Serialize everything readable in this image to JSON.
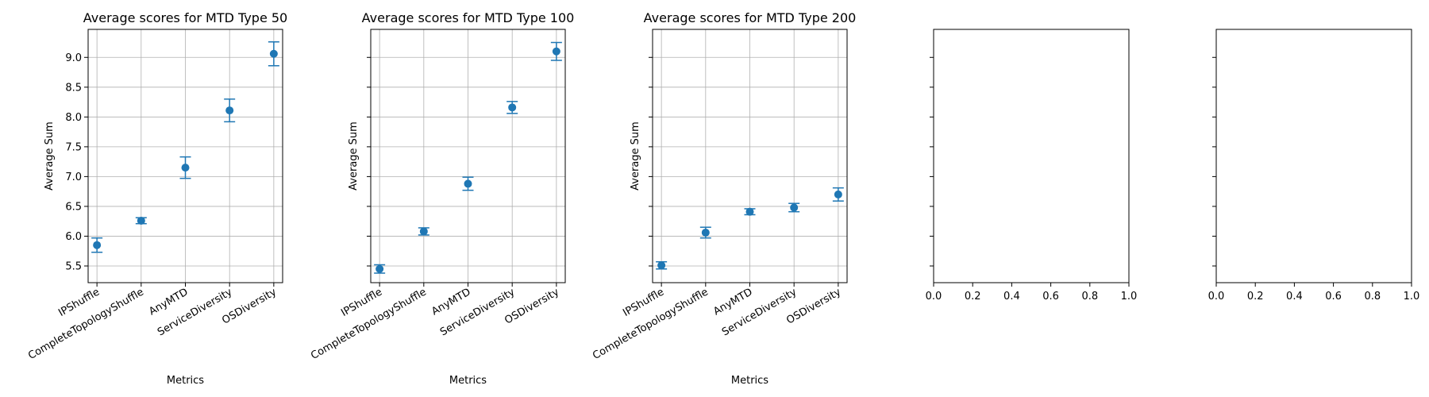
{
  "chart_data": [
    {
      "type": "scatter",
      "title": "Average scores for MTD Type 50",
      "xlabel": "Metrics",
      "ylabel": "Average Sum",
      "categories": [
        "IPShuffle",
        "CompleteTopologyShuffle",
        "AnyMTD",
        "ServiceDiversity",
        "OSDiversity"
      ],
      "values": [
        5.85,
        6.26,
        7.15,
        8.11,
        9.06
      ],
      "errors": [
        0.12,
        0.05,
        0.18,
        0.19,
        0.2
      ],
      "ylim": [
        5.22,
        9.47
      ],
      "yticks": [
        "5.5",
        "6.0",
        "6.5",
        "7.0",
        "7.5",
        "8.0",
        "8.5",
        "9.0"
      ],
      "show_yticklabels": true,
      "grid": true,
      "color": "#1f77b4"
    },
    {
      "type": "scatter",
      "title": "Average scores for MTD Type 100",
      "xlabel": "Metrics",
      "ylabel": "Average Sum",
      "categories": [
        "IPShuffle",
        "CompleteTopologyShuffle",
        "AnyMTD",
        "ServiceDiversity",
        "OSDiversity"
      ],
      "values": [
        5.45,
        6.08,
        6.88,
        8.16,
        9.1
      ],
      "errors": [
        0.07,
        0.06,
        0.11,
        0.1,
        0.15
      ],
      "ylim": [
        5.22,
        9.47
      ],
      "yticks": [
        "5.5",
        "6.0",
        "6.5",
        "7.0",
        "7.5",
        "8.0",
        "8.5",
        "9.0"
      ],
      "show_yticklabels": false,
      "grid": true,
      "color": "#1f77b4"
    },
    {
      "type": "scatter",
      "title": "Average scores for MTD Type 200",
      "xlabel": "Metrics",
      "ylabel": "Average Sum",
      "categories": [
        "IPShuffle",
        "CompleteTopologyShuffle",
        "AnyMTD",
        "ServiceDiversity",
        "OSDiversity"
      ],
      "values": [
        5.51,
        6.06,
        6.41,
        6.48,
        6.7
      ],
      "errors": [
        0.06,
        0.09,
        0.05,
        0.07,
        0.11
      ],
      "ylim": [
        5.22,
        9.47
      ],
      "yticks": [
        "5.5",
        "6.0",
        "6.5",
        "7.0",
        "7.5",
        "8.0",
        "8.5",
        "9.0"
      ],
      "show_yticklabels": false,
      "grid": true,
      "color": "#1f77b4"
    },
    {
      "type": "scatter",
      "title": "",
      "xlabel": "",
      "ylabel": "",
      "categories": [],
      "values": [],
      "xlim": [
        0,
        1
      ],
      "xticks": [
        "0.0",
        "0.2",
        "0.4",
        "0.6",
        "0.8",
        "1.0"
      ],
      "ylim": [
        5.22,
        9.47
      ],
      "yticks": [
        "5.5",
        "6.0",
        "6.5",
        "7.0",
        "7.5",
        "8.0",
        "8.5",
        "9.0"
      ],
      "show_yticklabels": false,
      "grid": false
    },
    {
      "type": "scatter",
      "title": "",
      "xlabel": "",
      "ylabel": "",
      "categories": [],
      "values": [],
      "xlim": [
        0,
        1
      ],
      "xticks": [
        "0.0",
        "0.2",
        "0.4",
        "0.6",
        "0.8",
        "1.0"
      ],
      "ylim": [
        5.22,
        9.47
      ],
      "yticks": [
        "5.5",
        "6.0",
        "6.5",
        "7.0",
        "7.5",
        "8.0",
        "8.5",
        "9.0"
      ],
      "show_yticklabels": false,
      "grid": false
    }
  ]
}
